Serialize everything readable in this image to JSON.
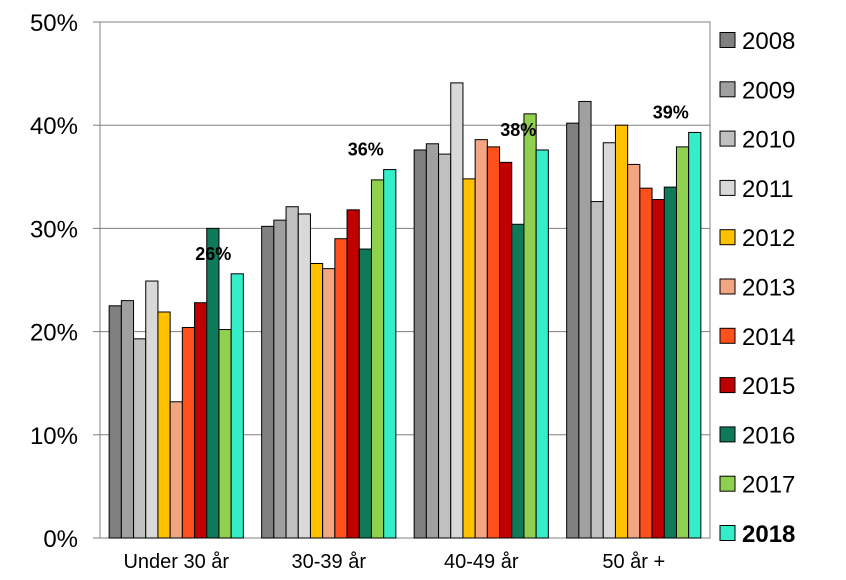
{
  "chart_data": {
    "type": "bar",
    "categories": [
      "Under 30 år",
      "30-39 år",
      "40-49 år",
      "50 år +"
    ],
    "ylim": [
      0,
      50
    ],
    "yticks": [
      "0%",
      "10%",
      "20%",
      "30%",
      "40%",
      "50%"
    ],
    "grid": true,
    "legend_position": "right",
    "series": [
      {
        "name": "2008",
        "color": "#808080",
        "values": [
          22.5,
          30.2,
          37.6,
          40.2
        ]
      },
      {
        "name": "2009",
        "color": "#a0a0a0",
        "values": [
          23.0,
          30.8,
          38.2,
          42.3
        ]
      },
      {
        "name": "2010",
        "color": "#c0c0c0",
        "values": [
          19.3,
          32.1,
          37.2,
          32.6
        ]
      },
      {
        "name": "2011",
        "color": "#d9d9d9",
        "values": [
          24.9,
          31.4,
          44.1,
          38.3
        ]
      },
      {
        "name": "2012",
        "color": "#ffc000",
        "values": [
          21.9,
          26.6,
          34.8,
          40.0
        ]
      },
      {
        "name": "2013",
        "color": "#f4a582",
        "values": [
          13.2,
          26.1,
          38.6,
          36.2
        ]
      },
      {
        "name": "2014",
        "color": "#ff4f1a",
        "values": [
          20.4,
          29.0,
          37.9,
          33.9
        ]
      },
      {
        "name": "2015",
        "color": "#c00000",
        "values": [
          22.8,
          31.8,
          36.4,
          32.8
        ]
      },
      {
        "name": "2016",
        "color": "#0f7a5a",
        "values": [
          30.0,
          28.0,
          30.4,
          34.0
        ]
      },
      {
        "name": "2017",
        "color": "#8fd14f",
        "values": [
          20.2,
          34.7,
          41.1,
          37.9
        ]
      },
      {
        "name": "2018",
        "color": "#33eec8",
        "values": [
          25.6,
          35.7,
          37.6,
          39.3
        ],
        "bold": true
      }
    ],
    "data_labels": [
      {
        "category_index": 0,
        "text": "26%"
      },
      {
        "category_index": 1,
        "text": "36%"
      },
      {
        "category_index": 2,
        "text": "38%"
      },
      {
        "category_index": 3,
        "text": "39%"
      }
    ]
  }
}
